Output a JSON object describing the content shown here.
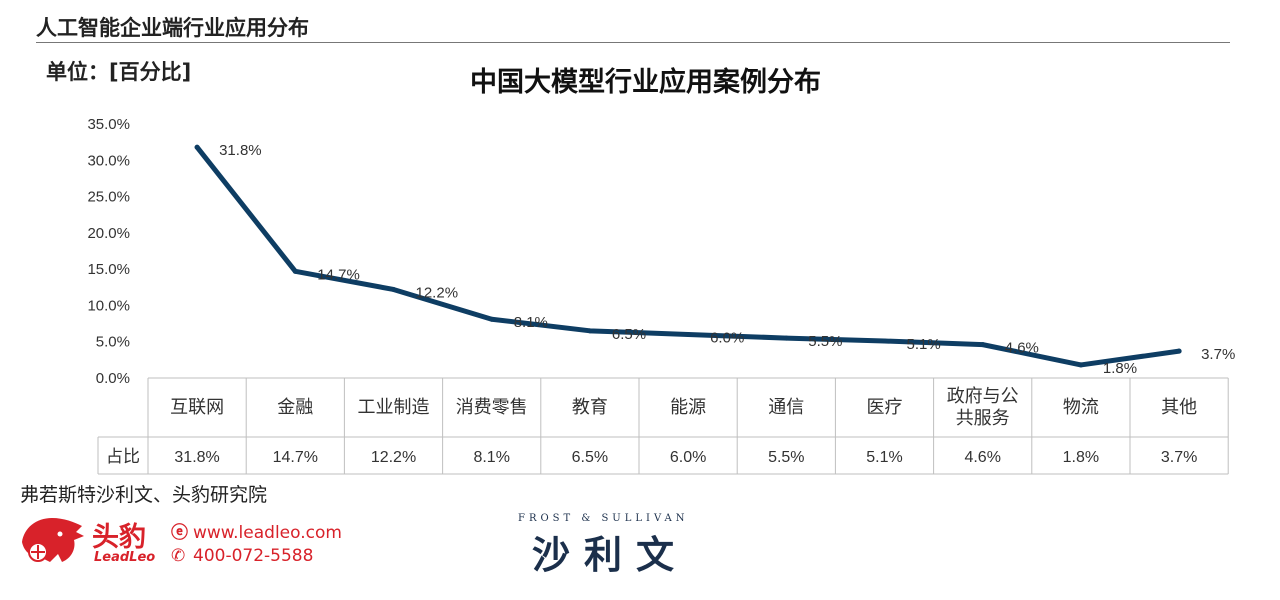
{
  "header": {
    "title": "人工智能企业端行业应用分布"
  },
  "unit_label": "单位：[百分比]",
  "table_row_label": "占比",
  "source": "弗若斯特沙利文、头豹研究院",
  "logo": {
    "name": "头豹",
    "sub": "LeadLeo",
    "website": "www.leadleo.com",
    "phone": "400-072-5588"
  },
  "fs_logo": {
    "top": "FROST & SULLIVAN",
    "main": "沙利文"
  },
  "colors": {
    "line": "#0e3d63",
    "grid": "#bfbfbf",
    "brand_red": "#d8222a",
    "fs_navy": "#1b2f4b"
  },
  "chart_data": {
    "type": "line",
    "title": "中国大模型行业应用案例分布",
    "categories": [
      "互联网",
      "金融",
      "工业制造",
      "消费零售",
      "教育",
      "能源",
      "通信",
      "医疗",
      "政府与公共服务",
      "物流",
      "其他"
    ],
    "category_label_lines": [
      [
        "互联网"
      ],
      [
        "金融"
      ],
      [
        "工业制造"
      ],
      [
        "消费零售"
      ],
      [
        "教育"
      ],
      [
        "能源"
      ],
      [
        "通信"
      ],
      [
        "医疗"
      ],
      [
        "政府与公",
        "共服务"
      ],
      [
        "物流"
      ],
      [
        "其他"
      ]
    ],
    "values": [
      31.8,
      14.7,
      12.2,
      8.1,
      6.5,
      6.0,
      5.5,
      5.1,
      4.6,
      1.8,
      3.7
    ],
    "data_labels": [
      "31.8%",
      "14.7%",
      "12.2%",
      "8.1%",
      "6.5%",
      "6.0%",
      "5.5%",
      "5.1%",
      "4.6%",
      "1.8%",
      "3.7%"
    ],
    "yticks": [
      "0.0%",
      "5.0%",
      "10.0%",
      "15.0%",
      "20.0%",
      "25.0%",
      "30.0%",
      "35.0%"
    ],
    "ylim": [
      0,
      35
    ],
    "xlabel": "",
    "ylabel": "",
    "grid": false,
    "legend": "none"
  }
}
